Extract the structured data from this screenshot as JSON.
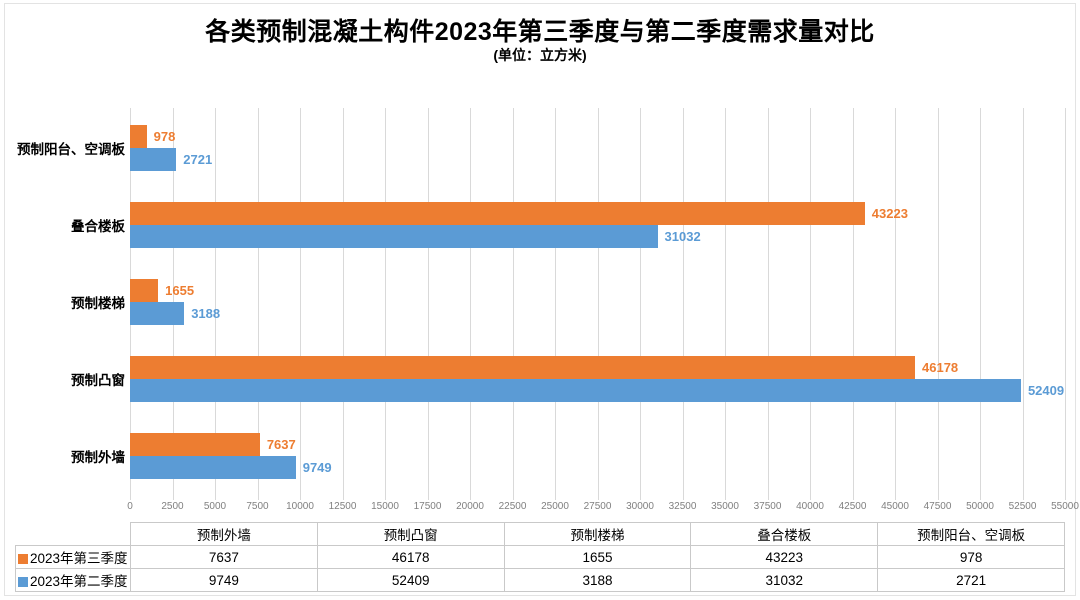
{
  "title": "各类预制混凝土构件2023年第三季度与第二季度需求量对比",
  "subtitle": "(单位：立方米)",
  "colors": {
    "series_q3_orange": "#ED7D31",
    "series_q2_blue": "#5B9BD5",
    "gridline": "#D9D9D9",
    "tick_text": "#808080",
    "table_border": "#C9C9C9"
  },
  "chart_data": {
    "type": "bar",
    "orientation": "horizontal",
    "categories_top_to_bottom": [
      "预制阳台、空调板",
      "叠合楼板",
      "预制楼梯",
      "预制凸窗",
      "预制外墙"
    ],
    "series": [
      {
        "name": "2023年第三季度",
        "color": "#ED7D31",
        "values": [
          978,
          43223,
          1655,
          46178,
          7637
        ]
      },
      {
        "name": "2023年第二季度",
        "color": "#5B9BD5",
        "values": [
          2721,
          31032,
          3188,
          52409,
          9749
        ]
      }
    ],
    "xlim": [
      0,
      55000
    ],
    "x_tick_step": 2500,
    "x_ticks": [
      0,
      2500,
      5000,
      7500,
      10000,
      12500,
      15000,
      17500,
      20000,
      22500,
      25000,
      27500,
      30000,
      32500,
      35000,
      37500,
      40000,
      42500,
      45000,
      47500,
      50000,
      52500,
      55000
    ],
    "grid": true,
    "value_labels": true,
    "legend_position": "table-rows"
  },
  "table": {
    "corner": "",
    "columns": [
      "预制外墙",
      "预制凸窗",
      "预制楼梯",
      "叠合楼板",
      "预制阳台、空调板"
    ],
    "rows": [
      {
        "label": "2023年第三季度",
        "swatch_color": "#ED7D31",
        "values": [
          "7637",
          "46178",
          "1655",
          "43223",
          "978"
        ]
      },
      {
        "label": "2023年第二季度",
        "swatch_color": "#5B9BD5",
        "values": [
          "9749",
          "52409",
          "3188",
          "31032",
          "2721"
        ]
      }
    ]
  }
}
